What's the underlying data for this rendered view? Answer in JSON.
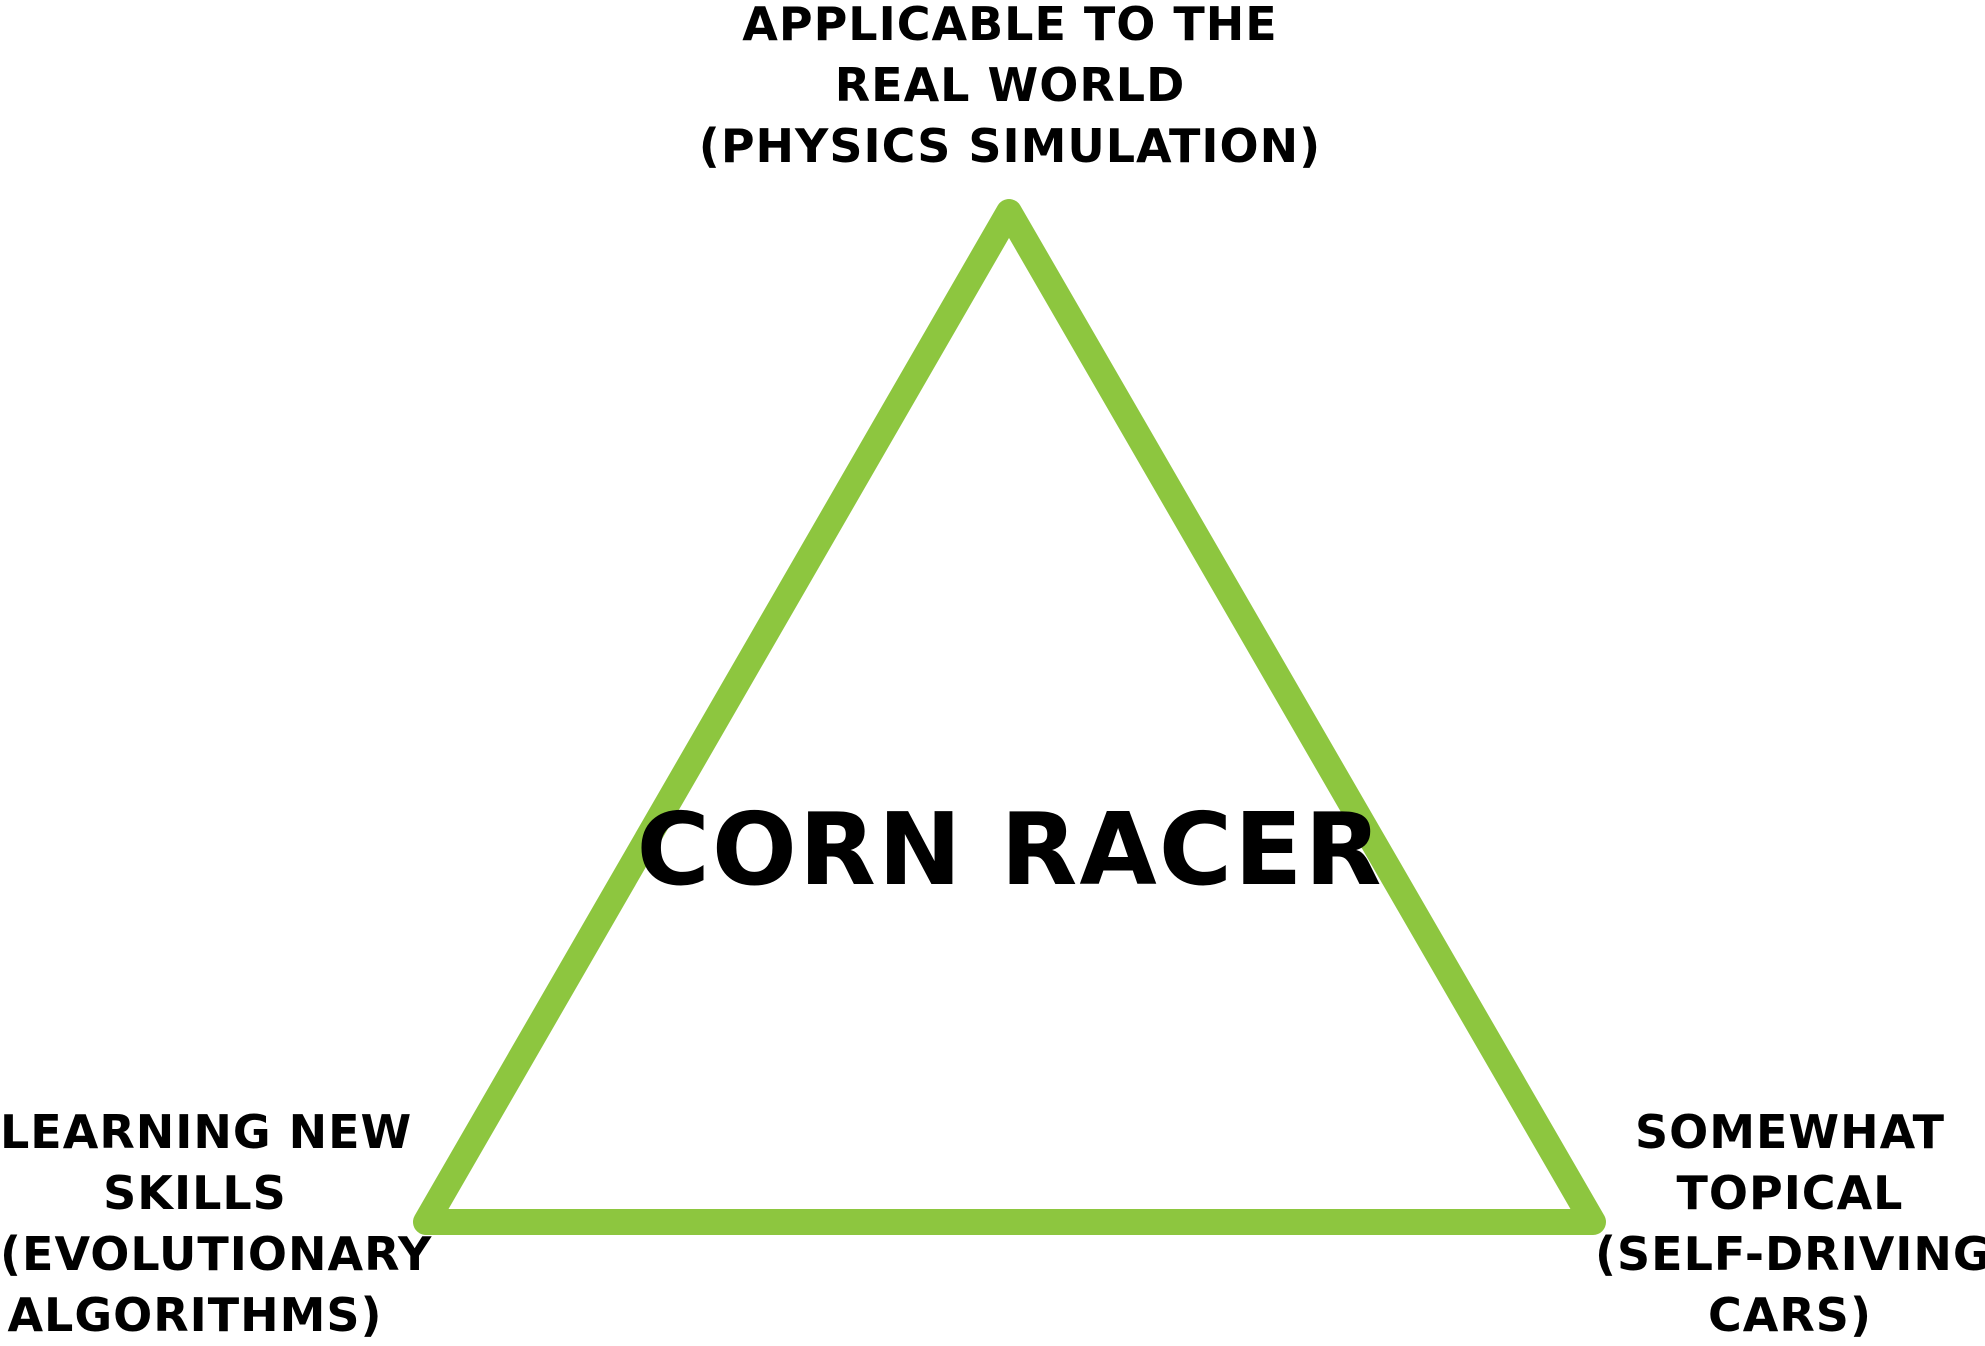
{
  "diagram": {
    "title": "CORN RACER",
    "vertices": {
      "top": {
        "lines": [
          "APPLICABLE TO THE",
          "REAL WORLD",
          "(PHYSICS SIMULATION)"
        ]
      },
      "left": {
        "lines": [
          "LEARNING NEW",
          "SKILLS",
          "(EVOLUTIONARY",
          "ALGORITHMS)"
        ]
      },
      "right": {
        "lines": [
          "SOMEWHAT",
          "TOPICAL",
          "(SELF-DRIVING",
          "CARS)"
        ]
      }
    },
    "colors": {
      "triangle_stroke": "#8dc63f",
      "text": "#000000",
      "background": "#ffffff"
    }
  }
}
